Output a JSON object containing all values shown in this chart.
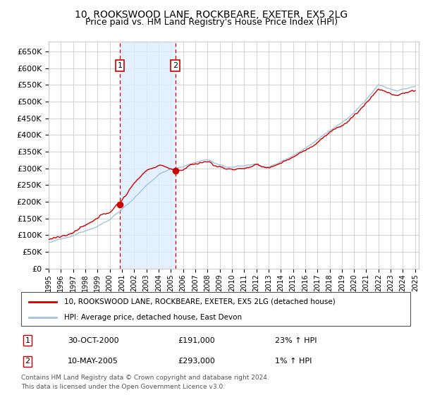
{
  "title": "10, ROOKSWOOD LANE, ROCKBEARE, EXETER, EX5 2LG",
  "subtitle": "Price paid vs. HM Land Registry's House Price Index (HPI)",
  "ylim": [
    0,
    680000
  ],
  "yticks": [
    0,
    50000,
    100000,
    150000,
    200000,
    250000,
    300000,
    350000,
    400000,
    450000,
    500000,
    550000,
    600000,
    650000
  ],
  "hpi_color": "#a0c4e0",
  "sale_color": "#cc0000",
  "grid_color": "#cccccc",
  "shading_color": "#ddeeff",
  "dashed_color": "#cc0000",
  "legend_label_sale": "10, ROOKSWOOD LANE, ROCKBEARE, EXETER, EX5 2LG (detached house)",
  "legend_label_hpi": "HPI: Average price, detached house, East Devon",
  "sale1_year": 2000.83,
  "sale1_price": 191000,
  "sale1_label": "1",
  "sale1_date": "30-OCT-2000",
  "sale1_pct": "23% ↑ HPI",
  "sale2_year": 2005.36,
  "sale2_price": 293000,
  "sale2_label": "2",
  "sale2_date": "10-MAY-2005",
  "sale2_pct": "1% ↑ HPI",
  "footnote1": "Contains HM Land Registry data © Crown copyright and database right 2024.",
  "footnote2": "This data is licensed under the Open Government Licence v3.0."
}
